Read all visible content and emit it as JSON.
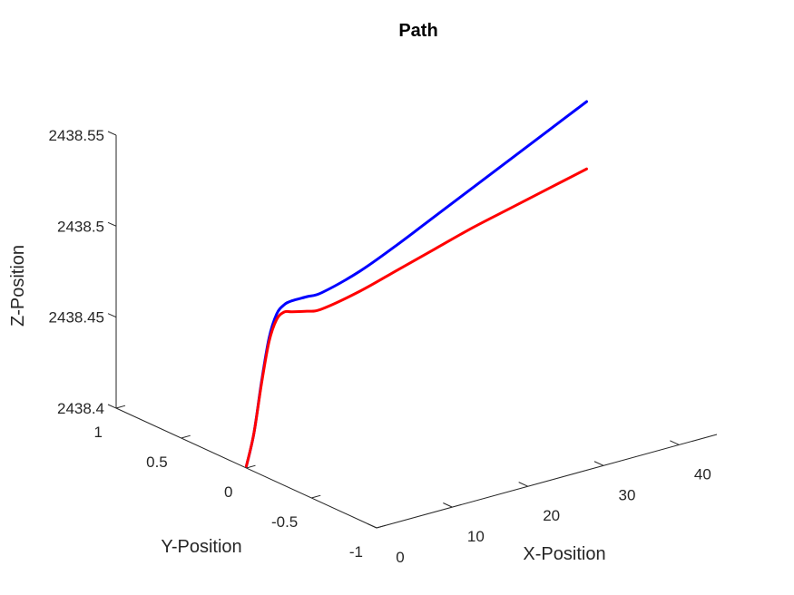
{
  "chart_data": {
    "type": "line",
    "title": "Path",
    "xlabel": "X-Position",
    "ylabel": "Y-Position",
    "zlabel": "Z-Position",
    "xlim": [
      0,
      45
    ],
    "ylim": [
      -1,
      1
    ],
    "zlim": [
      2438.4,
      2438.55
    ],
    "xticks": [
      "0",
      "10",
      "20",
      "30",
      "40"
    ],
    "yticks": [
      "-1",
      "-0.5",
      "0",
      "0.5",
      "1"
    ],
    "zticks": [
      "2438.4",
      "2438.45",
      "2438.5",
      "2438.55"
    ],
    "grid": false,
    "legend": "none",
    "series": [
      {
        "color": "#0000ff",
        "x": [
          0,
          1,
          2,
          3,
          4,
          5,
          6,
          8,
          10,
          15,
          20,
          25,
          30,
          35,
          40,
          45
        ],
        "y": [
          0,
          0,
          0,
          0,
          0,
          0,
          0,
          0,
          0,
          0,
          0,
          0,
          0,
          0,
          0,
          0
        ],
        "z": [
          2438.401,
          2438.418,
          2438.445,
          2438.468,
          2438.48,
          2438.484,
          2438.485,
          2438.485,
          2438.485,
          2438.491,
          2438.5,
          2438.51,
          2438.52,
          2438.53,
          2438.54,
          2438.55
        ]
      },
      {
        "color": "#ff0000",
        "x": [
          0,
          1,
          2,
          3,
          4,
          5,
          6,
          8,
          10,
          15,
          20,
          25,
          30,
          35,
          40,
          45
        ],
        "y": [
          0,
          0,
          0,
          0,
          0,
          0,
          0,
          0,
          0,
          0,
          0,
          0,
          0,
          0,
          0,
          0
        ],
        "z": [
          2438.401,
          2438.418,
          2438.444,
          2438.466,
          2438.477,
          2438.48,
          2438.479,
          2438.477,
          2438.476,
          2438.48,
          2438.486,
          2438.492,
          2438.498,
          2438.503,
          2438.508,
          2438.513
        ]
      }
    ]
  }
}
